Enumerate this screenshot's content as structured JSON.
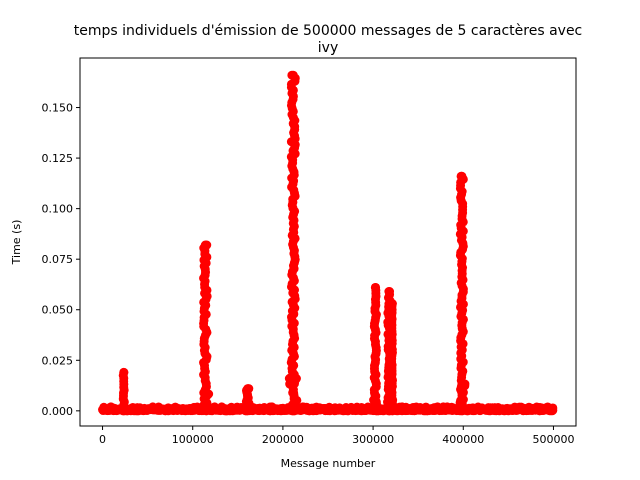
{
  "chart_data": {
    "type": "scatter",
    "title_line1": "temps individuels d'émission de 500000 messages de 5 caractères avec",
    "title_line2": "ivy",
    "xlabel": "Message number",
    "ylabel": "Time (s)",
    "xlim": [
      -25000,
      525000
    ],
    "ylim": [
      -0.0075,
      0.1745
    ],
    "x_ticks": [
      0,
      100000,
      200000,
      300000,
      400000,
      500000
    ],
    "x_tick_labels": [
      "0",
      "100000",
      "200000",
      "300000",
      "400000",
      "500000"
    ],
    "y_ticks": [
      0.0,
      0.025,
      0.05,
      0.075,
      0.1,
      0.125,
      0.15
    ],
    "y_tick_labels": [
      "0.000",
      "0.025",
      "0.050",
      "0.075",
      "0.100",
      "0.125",
      "0.150"
    ],
    "grid": false,
    "marker_color": "#ff0000",
    "baseline": {
      "x_start": 0,
      "x_end": 500000,
      "y_max": 0.002
    },
    "spikes": [
      {
        "x_start": 22000,
        "x_end": 25000,
        "y_peak": 0.019
      },
      {
        "x_start": 110000,
        "x_end": 118000,
        "y_peak": 0.082
      },
      {
        "x_start": 158000,
        "x_end": 164000,
        "y_peak": 0.011
      },
      {
        "x_start": 207000,
        "x_end": 216000,
        "y_peak": 0.166
      },
      {
        "x_start": 300000,
        "x_end": 305000,
        "y_peak": 0.061
      },
      {
        "x_start": 315000,
        "x_end": 320000,
        "y_peak": 0.059
      },
      {
        "x_start": 320000,
        "x_end": 322000,
        "y_peak": 0.053
      },
      {
        "x_start": 395000,
        "x_end": 402000,
        "y_peak": 0.116
      }
    ]
  }
}
